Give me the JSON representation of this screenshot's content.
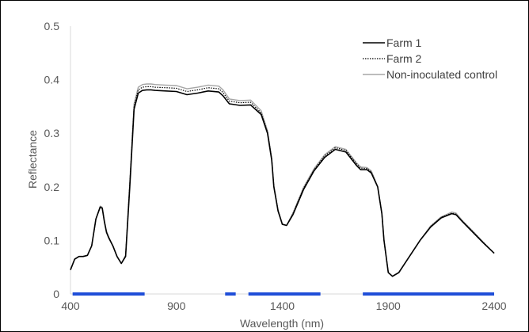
{
  "chart_data": {
    "type": "line",
    "title": "",
    "xlabel": "Wavelength (nm)",
    "ylabel": "Reflectance",
    "xlim": [
      400,
      2400
    ],
    "ylim": [
      0,
      0.5
    ],
    "x_ticks": [
      400,
      900,
      1400,
      1900,
      2400
    ],
    "x_tick_labels": [
      "400",
      "900",
      "1400",
      "1900",
      "2400"
    ],
    "y_ticks": [
      0,
      0.1,
      0.2,
      0.3,
      0.4,
      0.5
    ],
    "y_tick_labels": [
      "0",
      "0.1",
      "0.2",
      "0.3",
      "0.4",
      "0.5"
    ],
    "grid": false,
    "legend_position": "top-right",
    "x": [
      400,
      420,
      440,
      460,
      480,
      500,
      520,
      540,
      550,
      560,
      570,
      580,
      600,
      620,
      640,
      660,
      680,
      700,
      720,
      740,
      760,
      780,
      800,
      850,
      900,
      950,
      1000,
      1050,
      1100,
      1120,
      1150,
      1200,
      1250,
      1300,
      1330,
      1350,
      1360,
      1380,
      1400,
      1420,
      1450,
      1500,
      1550,
      1600,
      1650,
      1700,
      1750,
      1770,
      1800,
      1820,
      1850,
      1870,
      1880,
      1900,
      1920,
      1950,
      2000,
      2050,
      2100,
      2150,
      2200,
      2220,
      2250,
      2300,
      2350,
      2400
    ],
    "series": [
      {
        "name": "Farm 1",
        "color": "#000000",
        "dash": "solid",
        "width": 1.6,
        "values": [
          0.045,
          0.065,
          0.07,
          0.07,
          0.072,
          0.09,
          0.14,
          0.162,
          0.16,
          0.135,
          0.115,
          0.105,
          0.09,
          0.07,
          0.057,
          0.07,
          0.2,
          0.345,
          0.375,
          0.38,
          0.381,
          0.381,
          0.38,
          0.379,
          0.378,
          0.372,
          0.375,
          0.379,
          0.377,
          0.37,
          0.355,
          0.352,
          0.353,
          0.335,
          0.3,
          0.25,
          0.2,
          0.155,
          0.13,
          0.128,
          0.148,
          0.195,
          0.23,
          0.255,
          0.27,
          0.265,
          0.24,
          0.232,
          0.232,
          0.226,
          0.2,
          0.15,
          0.1,
          0.04,
          0.033,
          0.04,
          0.07,
          0.1,
          0.125,
          0.142,
          0.15,
          0.148,
          0.135,
          0.115,
          0.095,
          0.076
        ]
      },
      {
        "name": "Farm 2",
        "color": "#000000",
        "dash": "dotted",
        "width": 1.2,
        "values": [
          0.045,
          0.065,
          0.07,
          0.07,
          0.072,
          0.09,
          0.14,
          0.163,
          0.161,
          0.136,
          0.116,
          0.106,
          0.09,
          0.07,
          0.057,
          0.071,
          0.205,
          0.35,
          0.381,
          0.386,
          0.387,
          0.387,
          0.386,
          0.385,
          0.384,
          0.378,
          0.381,
          0.385,
          0.383,
          0.376,
          0.36,
          0.357,
          0.358,
          0.338,
          0.302,
          0.252,
          0.201,
          0.156,
          0.13,
          0.128,
          0.15,
          0.197,
          0.232,
          0.258,
          0.273,
          0.268,
          0.243,
          0.235,
          0.234,
          0.228,
          0.2,
          0.15,
          0.1,
          0.04,
          0.033,
          0.04,
          0.07,
          0.1,
          0.126,
          0.143,
          0.151,
          0.149,
          0.136,
          0.116,
          0.096,
          0.076
        ]
      },
      {
        "name": "Non-inoculated control",
        "color": "#a6a6a6",
        "dash": "solid",
        "width": 1.4,
        "values": [
          0.045,
          0.065,
          0.07,
          0.07,
          0.072,
          0.09,
          0.14,
          0.164,
          0.162,
          0.137,
          0.117,
          0.107,
          0.09,
          0.07,
          0.057,
          0.072,
          0.21,
          0.355,
          0.386,
          0.391,
          0.392,
          0.392,
          0.391,
          0.39,
          0.389,
          0.383,
          0.386,
          0.39,
          0.388,
          0.381,
          0.364,
          0.361,
          0.362,
          0.342,
          0.305,
          0.254,
          0.202,
          0.157,
          0.131,
          0.128,
          0.151,
          0.199,
          0.234,
          0.26,
          0.275,
          0.27,
          0.245,
          0.237,
          0.236,
          0.23,
          0.201,
          0.151,
          0.1,
          0.04,
          0.033,
          0.04,
          0.07,
          0.1,
          0.127,
          0.144,
          0.153,
          0.151,
          0.137,
          0.117,
          0.096,
          0.076
        ]
      }
    ],
    "highlight_ranges": {
      "color": "#1f4ed8",
      "y": 0,
      "ranges": [
        [
          410,
          750
        ],
        [
          1130,
          1180
        ],
        [
          1240,
          1580
        ],
        [
          1780,
          2400
        ]
      ]
    }
  }
}
